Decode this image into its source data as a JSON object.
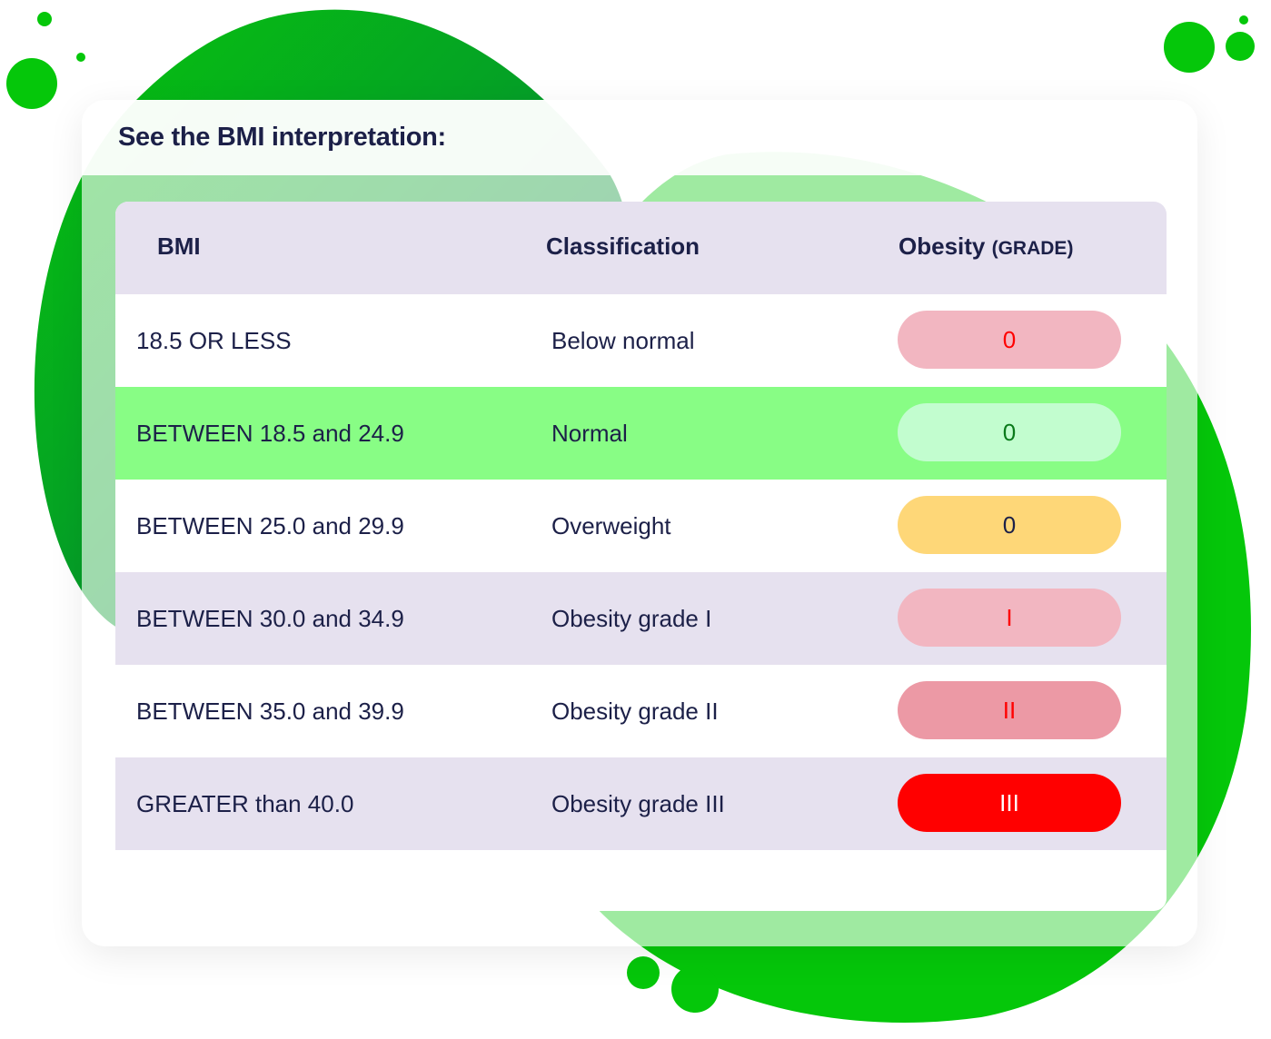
{
  "title": "See the BMI interpretation:",
  "table": {
    "headers": {
      "bmi": "BMI",
      "classification": "Classification",
      "obesity": "Obesity",
      "grade": "(GRADE)"
    },
    "rows": [
      {
        "bmi": "18.5 OR LESS",
        "classification": "Below normal",
        "grade": "0",
        "row_bg": "#ffffff",
        "pill_bg": "#f2b6c1",
        "pill_fg": "#ff0000"
      },
      {
        "bmi": "BETWEEN 18.5 and 24.9",
        "classification": "Normal",
        "grade": "0",
        "row_bg": "#88fd85",
        "pill_bg": "#c2fdcf",
        "pill_fg": "#0a7a1a"
      },
      {
        "bmi": "BETWEEN 25.0 and 29.9",
        "classification": "Overweight",
        "grade": "0",
        "row_bg": "#ffffff",
        "pill_bg": "#fed778",
        "pill_fg": "#1c2048"
      },
      {
        "bmi": "BETWEEN 30.0 and 34.9",
        "classification": "Obesity grade I",
        "grade": "I",
        "row_bg": "#e6e1ef",
        "pill_bg": "#f2b6c1",
        "pill_fg": "#ff0000"
      },
      {
        "bmi": "BETWEEN 35.0 and 39.9",
        "classification": "Obesity grade II",
        "grade": "II",
        "row_bg": "#ffffff",
        "pill_bg": "#ec99a5",
        "pill_fg": "#ff0000"
      },
      {
        "bmi": "GREATER than 40.0",
        "classification": "Obesity grade III",
        "grade": "III",
        "row_bg": "#e6e1ef",
        "pill_bg": "#ff0000",
        "pill_fg": "#ffffff"
      }
    ]
  },
  "colors": {
    "accent_green": "#05c70a",
    "dark_green": "#047a3f",
    "text": "#1c2048"
  }
}
